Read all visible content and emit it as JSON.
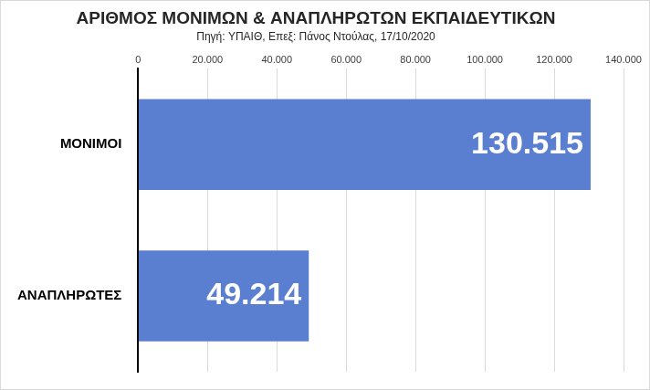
{
  "chart_data": {
    "type": "bar",
    "title": "ΑΡΙΘΜΟΣ ΜΟΝΙΜΩΝ & ΑΝΑΠΛΗΡΩΤΩΝ ΕΚΠΑΙΔΕΥΤΙΚΩΝ",
    "subtitle": "Πηγή: ΥΠΑΙΘ, Επεξ: Πάνος Ντούλας, 17/10/2020",
    "categories": [
      "ΜΟΝΙΜΟΙ",
      "ΑΝΑΠΛΗΡΩΤΕΣ"
    ],
    "values": [
      130515,
      49214
    ],
    "value_labels": [
      "130.515",
      "49.214"
    ],
    "color": "#5b7fd0",
    "orientation": "horizontal",
    "data_labels": true,
    "xlim": [
      0,
      140000
    ],
    "xticks": [
      0,
      {
        "value": 20000,
        "label": "20.000"
      },
      {
        "value": 40000,
        "label": "40.000"
      },
      {
        "value": 60000,
        "label": "60.000"
      },
      {
        "value": 80000,
        "label": "80.000"
      },
      {
        "value": 100000,
        "label": "100.000"
      },
      {
        "value": 120000,
        "label": "120.000"
      },
      {
        "value": 140000,
        "label": "140.000"
      }
    ],
    "grid": true
  }
}
